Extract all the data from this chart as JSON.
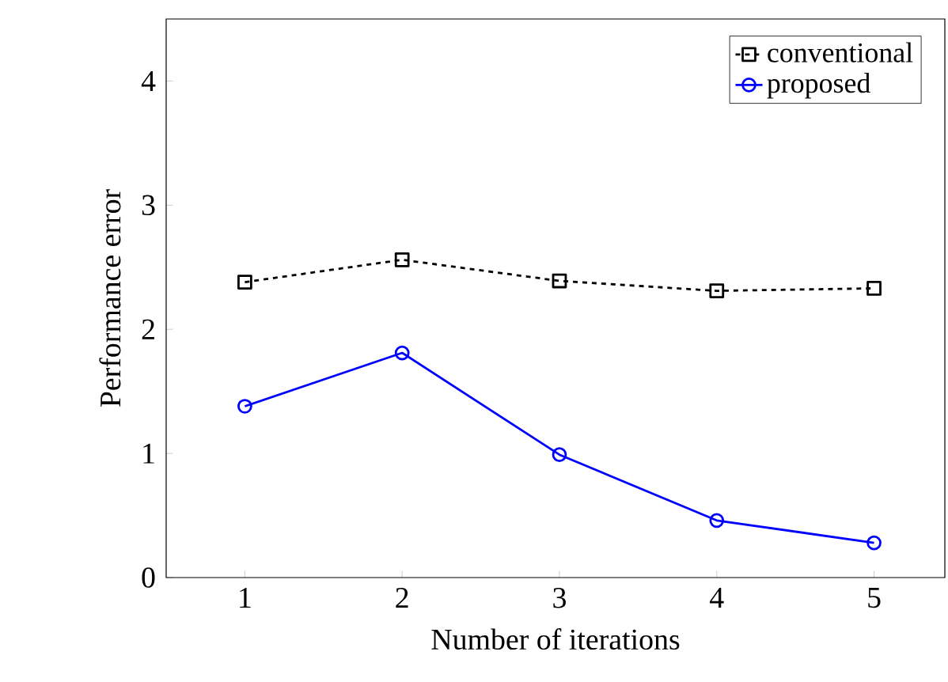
{
  "chart_data": {
    "type": "line",
    "xlabel": "Number of iterations",
    "ylabel": "Performance error",
    "x": [
      1,
      2,
      3,
      4,
      5
    ],
    "xlim": [
      0.5,
      5.45
    ],
    "ylim": [
      0,
      4.5
    ],
    "xticks": [
      1,
      2,
      3,
      4,
      5
    ],
    "yticks": [
      0,
      1,
      2,
      3,
      4
    ],
    "grid": false,
    "legend": "top right",
    "series": [
      {
        "name": "conventional",
        "color": "#000000",
        "marker": "square",
        "line_style": "dashed",
        "values": [
          2.38,
          2.56,
          2.39,
          2.31,
          2.33
        ]
      },
      {
        "name": "proposed",
        "color": "#0000ff",
        "marker": "circle",
        "line_style": "solid",
        "values": [
          1.38,
          1.81,
          0.99,
          0.46,
          0.28
        ]
      }
    ]
  }
}
